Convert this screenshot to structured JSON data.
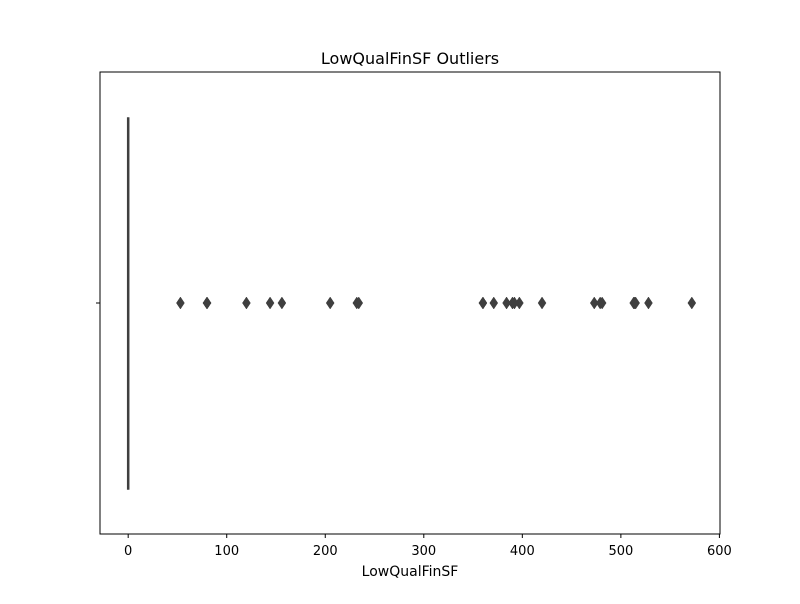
{
  "chart_data": {
    "type": "box",
    "title": "LowQualFinSF Outliers",
    "xlabel": "LowQualFinSF",
    "ylabel": "",
    "xlim": [
      -28.6,
      600.6
    ],
    "xticks": [
      0,
      100,
      200,
      300,
      400,
      500,
      600
    ],
    "grid": false,
    "orientation": "horizontal",
    "box": {
      "q1": 0,
      "median": 0,
      "q3": 0,
      "whisker_low": 0,
      "whisker_high": 0
    },
    "outliers": [
      53,
      80,
      80,
      80,
      120,
      144,
      156,
      205,
      232,
      234,
      360,
      360,
      371,
      384,
      390,
      392,
      397,
      420,
      473,
      479,
      481,
      513,
      514,
      515,
      528,
      572
    ],
    "colors": {
      "box_line": "#3f3f3f",
      "outlier": "#3f3f3f",
      "axes": "#000000"
    }
  }
}
